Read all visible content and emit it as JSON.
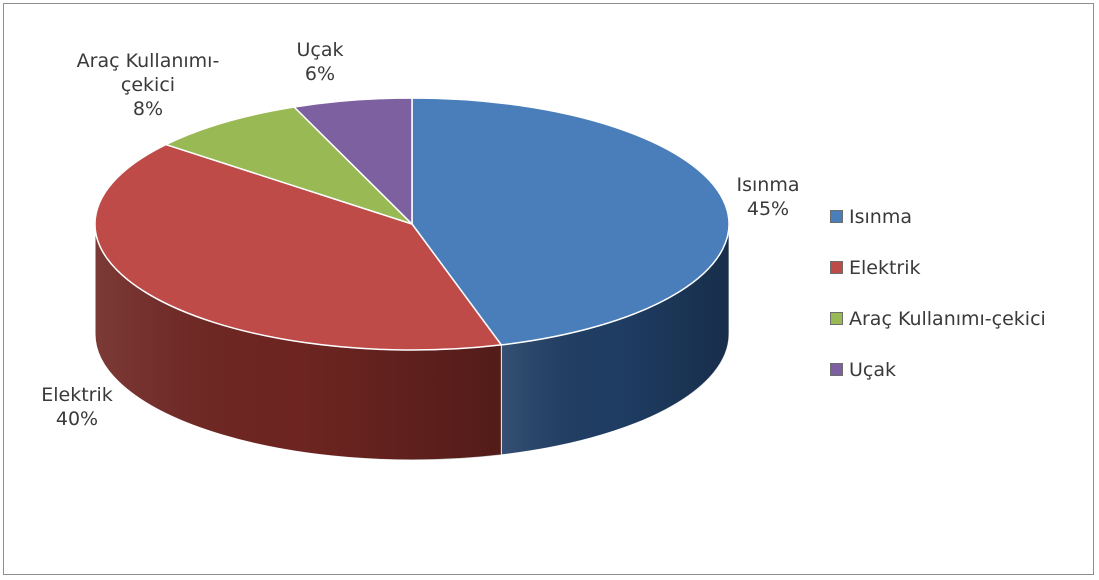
{
  "chart_data": {
    "type": "pie",
    "three_d": true,
    "title": "",
    "categories": [
      "Isınma",
      "Elektrik",
      "Araç Kullanımı-çekici",
      "Uçak"
    ],
    "values": [
      45,
      40,
      8,
      6
    ],
    "unit": "%",
    "colors": [
      "#4a7ebb",
      "#be4b48",
      "#98b954",
      "#7d60a0"
    ],
    "side_colors": [
      "#1f3d63",
      "#6e2521",
      "#4f6326",
      "#3f2f55"
    ],
    "legend_position": "right",
    "data_labels": [
      {
        "name_lines": [
          "Isınma"
        ],
        "value": "45%"
      },
      {
        "name_lines": [
          "Elektrik"
        ],
        "value": "40%"
      },
      {
        "name_lines": [
          "Araç Kullanımı-",
          "çekici"
        ],
        "value": "8%"
      },
      {
        "name_lines": [
          "Uçak"
        ],
        "value": "6%"
      }
    ]
  },
  "legend": {
    "items": [
      "Isınma",
      "Elektrik",
      "Araç Kullanımı-çekici",
      "Uçak"
    ]
  }
}
